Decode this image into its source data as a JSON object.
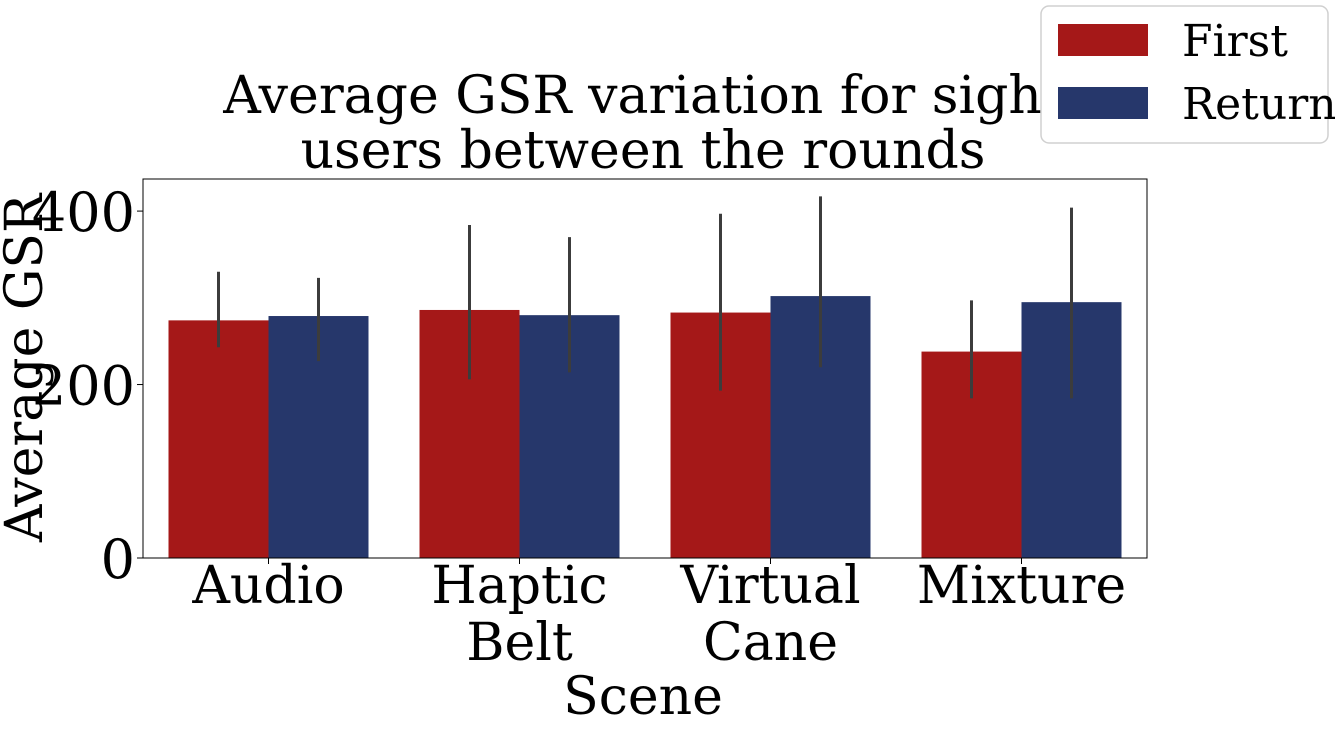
{
  "chart_data": {
    "type": "bar",
    "title": [
      "Average GSR variation for sight",
      "users between the rounds"
    ],
    "xlabel": "Scene",
    "ylabel": "Average GSR",
    "categories": [
      [
        "Audio"
      ],
      [
        "Haptic",
        "Belt"
      ],
      [
        "Virtual",
        "Cane"
      ],
      [
        "Mixture"
      ]
    ],
    "ylim": [
      0,
      437
    ],
    "yticks": [
      0,
      200,
      400
    ],
    "legend_position": "top-right, outside plot",
    "grid": false,
    "series": [
      {
        "name": "First",
        "color": "#a51818",
        "values": [
          274,
          286,
          283,
          238
        ],
        "err_low": [
          243,
          206,
          193,
          184
        ],
        "err_high": [
          330,
          384,
          397,
          297
        ]
      },
      {
        "name": "Return",
        "color": "#26376b",
        "values": [
          279,
          280,
          302,
          295
        ],
        "err_low": [
          227,
          214,
          220,
          184
        ],
        "err_high": [
          323,
          370,
          417,
          404
        ]
      }
    ]
  }
}
